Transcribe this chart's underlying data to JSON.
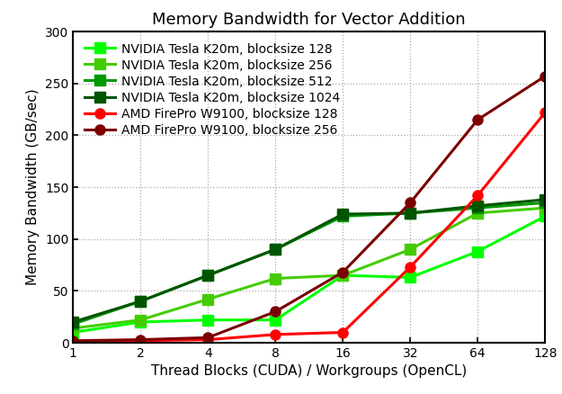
{
  "title": "Memory Bandwidth for Vector Addition",
  "xlabel": "Thread Blocks (CUDA) / Workgroups (OpenCL)",
  "ylabel": "Memory Bandwidth (GB/sec)",
  "x": [
    1,
    2,
    4,
    8,
    16,
    32,
    64,
    128
  ],
  "series": [
    {
      "label": "NVIDIA Tesla K20m, blocksize 128",
      "color": "#00ff00",
      "marker": "s",
      "y": [
        10,
        20,
        22,
        22,
        65,
        63,
        88,
        122
      ]
    },
    {
      "label": "NVIDIA Tesla K20m, blocksize 256",
      "color": "#44cc00",
      "marker": "s",
      "y": [
        14,
        22,
        42,
        62,
        65,
        90,
        125,
        130
      ]
    },
    {
      "label": "NVIDIA Tesla K20m, blocksize 512",
      "color": "#009900",
      "marker": "s",
      "y": [
        18,
        40,
        65,
        90,
        122,
        125,
        130,
        135
      ]
    },
    {
      "label": "NVIDIA Tesla K20m, blocksize 1024",
      "color": "#005500",
      "marker": "s",
      "y": [
        20,
        40,
        65,
        90,
        124,
        125,
        132,
        138
      ]
    },
    {
      "label": "AMD FirePro W9100, blocksize 128",
      "color": "#ff0000",
      "marker": "o",
      "y": [
        1,
        2,
        3,
        8,
        10,
        73,
        142,
        222
      ]
    },
    {
      "label": "AMD FirePro W9100, blocksize 256",
      "color": "#7b0000",
      "marker": "o",
      "y": [
        2,
        3,
        5,
        30,
        68,
        135,
        215,
        257
      ]
    }
  ],
  "ylim": [
    0,
    300
  ],
  "yticks": [
    0,
    50,
    100,
    150,
    200,
    250,
    300
  ],
  "xticks": [
    1,
    2,
    4,
    8,
    16,
    32,
    64,
    128
  ],
  "background_color": "#ffffff",
  "grid_color": "#aaaaaa",
  "title_fontsize": 13,
  "label_fontsize": 11,
  "legend_fontsize": 10,
  "linewidth": 2.2,
  "markersize": 8
}
